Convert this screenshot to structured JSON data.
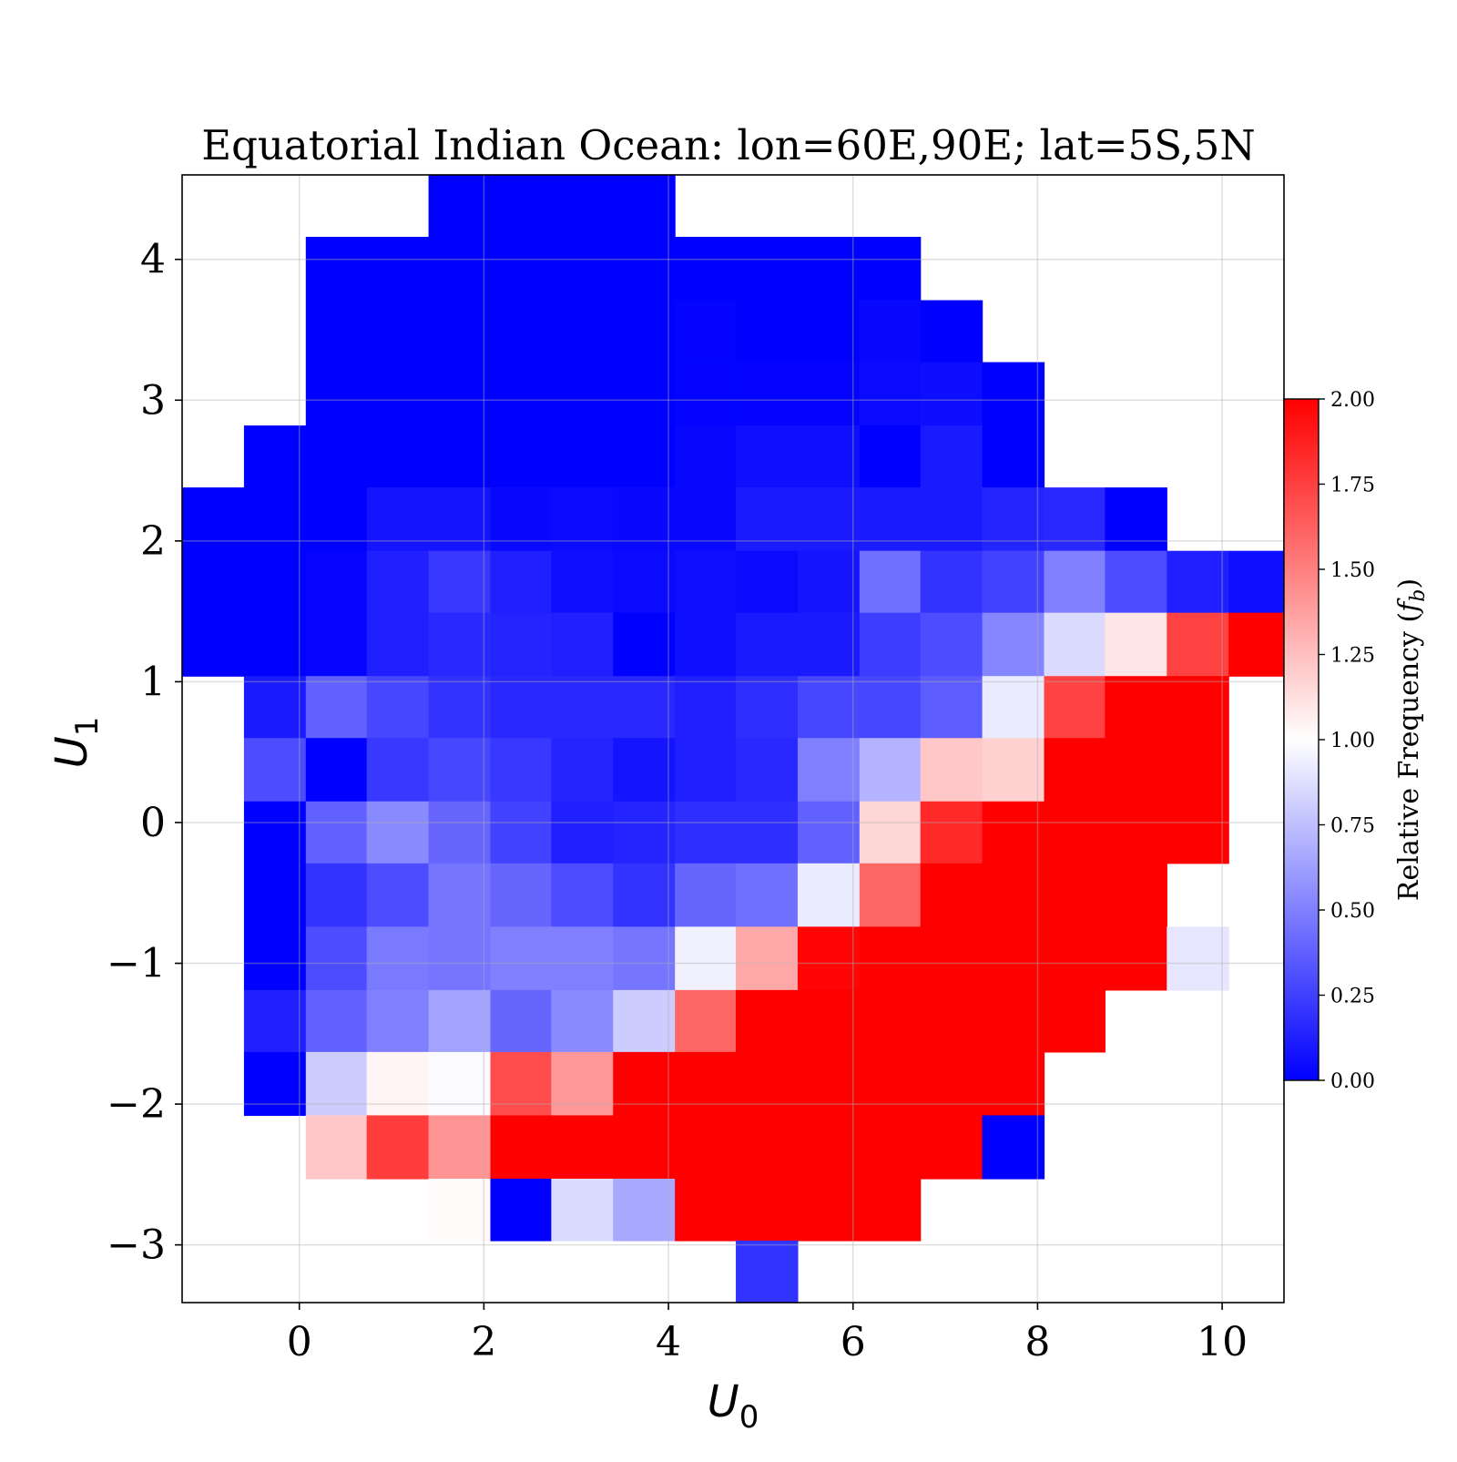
{
  "chart_data": {
    "type": "heatmap",
    "title": "Equatorial Indian Ocean: lon=60E,90E; lat=5S,5N",
    "xlabel": "U",
    "xlabel_sub": "0",
    "ylabel": "U",
    "ylabel_sub": "1",
    "xlim": [
      -1.27,
      10.67
    ],
    "ylim": [
      -3.41,
      4.6
    ],
    "xticks": [
      0,
      2,
      4,
      6,
      8,
      10
    ],
    "xtick_labels": [
      "0",
      "2",
      "4",
      "6",
      "8",
      "10"
    ],
    "yticks": [
      -3,
      -2,
      -1,
      0,
      1,
      2,
      3,
      4
    ],
    "ytick_labels": [
      "−3",
      "−2",
      "−1",
      "0",
      "1",
      "2",
      "3",
      "4"
    ],
    "grid": true,
    "colormap": "bwr",
    "colors": {
      "low": "#0000ff",
      "mid": "#ffffff",
      "high": "#ff0000"
    },
    "colorbar": {
      "label": "Relative Frequency (",
      "label_var": "f",
      "label_sub": "b",
      "label_close": ")",
      "vmin": 0.0,
      "vmax": 2.0,
      "ticks": [
        0.0,
        0.25,
        0.5,
        0.75,
        1.0,
        1.25,
        1.5,
        1.75,
        2.0
      ],
      "tick_labels": [
        "0.00",
        "0.25",
        "0.50",
        "0.75",
        "1.00",
        "1.25",
        "1.50",
        "1.75",
        "2.00"
      ]
    },
    "x_edges": [
      -1.27,
      -0.6,
      0.07,
      0.73,
      1.4,
      2.07,
      2.73,
      3.4,
      4.07,
      4.73,
      5.4,
      6.07,
      6.73,
      7.4,
      8.07,
      8.73,
      9.4,
      10.07,
      10.73
    ],
    "y_edges": [
      -3.41,
      -2.97,
      -2.53,
      -2.08,
      -1.63,
      -1.19,
      -0.74,
      -0.29,
      0.15,
      0.6,
      1.04,
      1.49,
      1.93,
      2.38,
      2.82,
      3.27,
      3.71,
      4.16,
      4.6
    ],
    "rows_top_to_bottom": [
      [
        null,
        null,
        null,
        null,
        0.0,
        0.0,
        0.0,
        0.0,
        null,
        null,
        null,
        null,
        null,
        null,
        null,
        null,
        null,
        null
      ],
      [
        null,
        null,
        0.0,
        0.0,
        0.0,
        0.0,
        0.0,
        0.0,
        0.0,
        0.0,
        0.0,
        0.0,
        null,
        null,
        null,
        null,
        null,
        null
      ],
      [
        null,
        null,
        0.0,
        0.0,
        0.0,
        0.0,
        0.0,
        0.0,
        0.01,
        0.0,
        0.0,
        0.03,
        0.0,
        null,
        null,
        null,
        null,
        null
      ],
      [
        null,
        null,
        0.0,
        0.0,
        0.0,
        0.0,
        0.0,
        0.0,
        0.01,
        0.01,
        0.01,
        0.04,
        0.05,
        0.0,
        null,
        null,
        null,
        null
      ],
      [
        null,
        0.0,
        0.0,
        0.0,
        0.0,
        0.0,
        0.0,
        0.0,
        0.03,
        0.06,
        0.06,
        0.0,
        0.1,
        0.0,
        null,
        null,
        null,
        null
      ],
      [
        0.0,
        0.0,
        0.0,
        0.08,
        0.08,
        0.03,
        0.04,
        0.03,
        0.03,
        0.1,
        0.1,
        0.1,
        0.1,
        0.14,
        0.16,
        0.0,
        null,
        null
      ],
      [
        0.0,
        0.0,
        0.02,
        0.12,
        0.22,
        0.12,
        0.06,
        0.04,
        0.06,
        0.04,
        0.08,
        0.44,
        0.2,
        0.26,
        0.5,
        0.3,
        0.12,
        0.06
      ],
      [
        0.0,
        0.0,
        0.02,
        0.12,
        0.16,
        0.14,
        0.12,
        0.0,
        0.06,
        0.1,
        0.1,
        0.24,
        0.3,
        0.52,
        0.86,
        1.1,
        1.74,
        2.0
      ],
      [
        null,
        0.1,
        0.38,
        0.28,
        0.2,
        0.16,
        0.16,
        0.16,
        0.12,
        0.18,
        0.28,
        0.28,
        0.36,
        0.92,
        1.74,
        2.0,
        2.0,
        null
      ],
      [
        null,
        0.3,
        0.0,
        0.22,
        0.28,
        0.22,
        0.14,
        0.08,
        0.12,
        0.16,
        0.5,
        0.7,
        1.22,
        1.18,
        2.0,
        2.0,
        2.0,
        null
      ],
      [
        null,
        0.0,
        0.38,
        0.54,
        0.4,
        0.26,
        0.12,
        0.14,
        0.18,
        0.18,
        0.38,
        1.16,
        1.84,
        2.0,
        2.0,
        2.0,
        2.0,
        null
      ],
      [
        null,
        0.0,
        0.2,
        0.3,
        0.46,
        0.4,
        0.3,
        0.2,
        0.4,
        0.44,
        0.92,
        1.6,
        2.0,
        2.0,
        2.0,
        2.0,
        null,
        null
      ],
      [
        null,
        0.0,
        0.3,
        0.48,
        0.46,
        0.5,
        0.5,
        0.46,
        0.94,
        1.34,
        1.98,
        2.0,
        2.0,
        2.0,
        2.0,
        2.0,
        0.9,
        null
      ],
      [
        null,
        0.12,
        0.38,
        0.5,
        0.64,
        0.4,
        0.54,
        0.8,
        1.6,
        2.0,
        2.0,
        2.0,
        2.0,
        2.0,
        2.0,
        null,
        null,
        null
      ],
      [
        null,
        0.0,
        0.8,
        1.04,
        0.98,
        1.7,
        1.4,
        2.0,
        2.0,
        2.0,
        2.0,
        2.0,
        2.0,
        2.0,
        null,
        null,
        null,
        null
      ],
      [
        null,
        null,
        1.22,
        1.76,
        1.42,
        2.0,
        2.0,
        2.0,
        2.0,
        2.0,
        2.0,
        2.0,
        2.0,
        0.0,
        null,
        null,
        null,
        null
      ],
      [
        null,
        null,
        null,
        null,
        1.02,
        0.0,
        0.86,
        0.66,
        2.0,
        2.0,
        2.0,
        2.0,
        null,
        null,
        null,
        null,
        null,
        null
      ],
      [
        null,
        null,
        null,
        null,
        null,
        null,
        null,
        null,
        null,
        0.2,
        null,
        null,
        null,
        null,
        null,
        null,
        null,
        null
      ]
    ]
  }
}
